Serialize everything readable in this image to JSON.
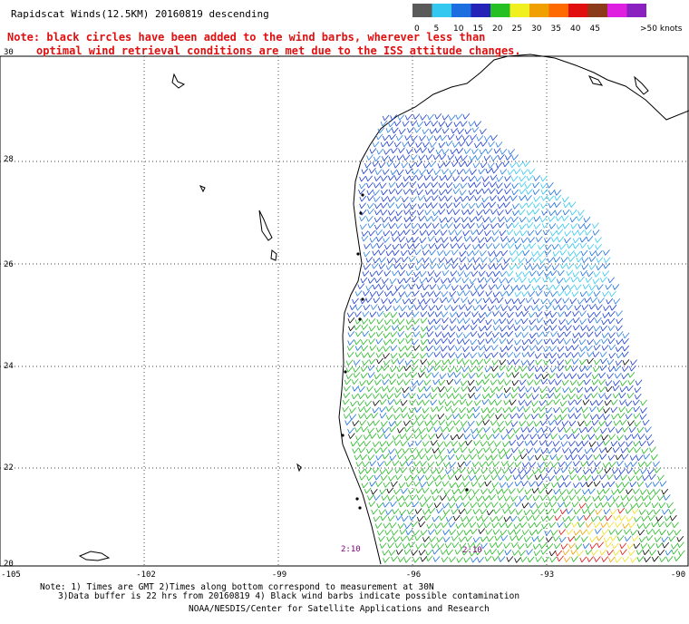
{
  "header": {
    "title": "Rapidscat Winds(12.5KM) 20160819 descending",
    "note_line1": "Note: black circles have been added to the wind barbs, wherever less than",
    "note_line2": "optimal wind retrieval conditions are met due to the ISS attitude changes."
  },
  "legend": {
    "units": ">50 knots",
    "bins": [
      {
        "label": "0",
        "color": "#5a5a5a"
      },
      {
        "label": "5",
        "color": "#33c8f0"
      },
      {
        "label": "10",
        "color": "#1c6ee0"
      },
      {
        "label": "15",
        "color": "#2323b8"
      },
      {
        "label": "20",
        "color": "#24c024"
      },
      {
        "label": "25",
        "color": "#f0f020"
      },
      {
        "label": "30",
        "color": "#f0a000"
      },
      {
        "label": "35",
        "color": "#ff6a00"
      },
      {
        "label": "40",
        "color": "#e01010"
      },
      {
        "label": "45",
        "color": "#8b3a1a"
      },
      {
        "label": "",
        "color": "#e020e0"
      },
      {
        "label": "",
        "color": "#8a20c0"
      }
    ]
  },
  "map": {
    "lat_labels": [
      "30",
      "28",
      "26",
      "24",
      "22",
      "20"
    ],
    "lon_labels": [
      "-105",
      "-102",
      "-99",
      "-96",
      "-93",
      "-90"
    ],
    "time_labels": [
      "2:10",
      "2:10"
    ]
  },
  "footer": {
    "line1": "Note: 1) Times are GMT 2)Times along bottom correspond to measurement at 30N",
    "line2": "3)Data buffer is 22 hrs from 20160819 4) Black wind barbs indicate possible contamination",
    "line3": "NOAA/NESDIS/Center for Satellite Applications and Research"
  }
}
